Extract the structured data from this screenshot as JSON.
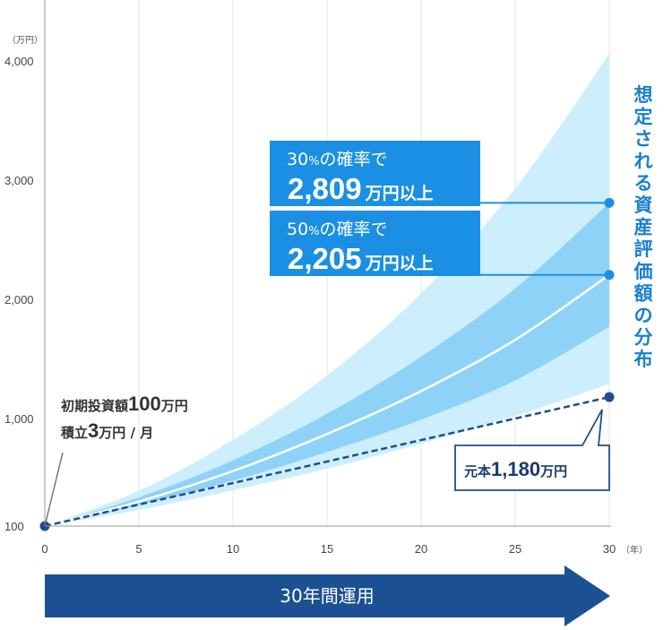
{
  "chart_data": {
    "type": "area",
    "title": "",
    "xlabel": "",
    "ylabel": "",
    "y_unit": "（万円）",
    "x_unit": "（年）",
    "x_ticks": [
      0,
      5,
      10,
      15,
      20,
      25,
      30
    ],
    "x_tick_labels": [
      "0",
      "5",
      "10",
      "15",
      "20",
      "25",
      "30"
    ],
    "y_ticks": [
      100,
      1000,
      2000,
      3000,
      4000
    ],
    "y_tick_labels": [
      "100",
      "1,000",
      "2,000",
      "3,000",
      "4,000"
    ],
    "xlim": [
      0,
      30
    ],
    "ylim": [
      0,
      4000
    ],
    "grid": true,
    "x": [
      0,
      5,
      10,
      15,
      20,
      25,
      30
    ],
    "series": [
      {
        "values": [
          100,
          395,
          820,
          1360,
          2050,
          2930,
          4060
        ]
      },
      {
        "values": [
          100,
          340,
          650,
          1040,
          1520,
          2090,
          2809
        ]
      },
      {
        "values": [
          100,
          305,
          560,
          870,
          1230,
          1660,
          2205
        ]
      },
      {
        "values": [
          100,
          275,
          480,
          720,
          990,
          1320,
          1770
        ]
      },
      {
        "values": [
          100,
          235,
          400,
          580,
          790,
          1020,
          1290
        ]
      },
      {
        "values": [
          100,
          280,
          460,
          640,
          820,
          1000,
          1180
        ]
      }
    ],
    "colors": {
      "outer_band": "#cdeefd",
      "inner_band": "#8ed3f7",
      "median": "#ffffff",
      "principal": "#1f4e8c",
      "callout": "#1a8fe3",
      "callout_line": "#1a8fe3",
      "arrow": "#1b5192",
      "side_text": "#1a7fcf"
    }
  },
  "callouts": [
    {
      "line1": "30",
      "line1_pct": "%",
      "line1_rest": "の確率で",
      "value": "2,809",
      "unit": "万円以上"
    },
    {
      "line1": "50",
      "line1_pct": "%",
      "line1_rest": "の確率で",
      "value": "2,205",
      "unit": "万円以上"
    }
  ],
  "initial_note": {
    "line1_pre": "初期投資額",
    "line1_num": "100",
    "line1_unit": "万円",
    "line2_pre": "積立",
    "line2_num": "3",
    "line2_unit": "万円 / 月"
  },
  "principal_note": {
    "pre": "元本",
    "num": "1,180",
    "unit": "万円"
  },
  "side_label": [
    "想",
    "定",
    "さ",
    "れ",
    "る",
    "資",
    "産",
    "評",
    "価",
    "額",
    "の",
    "分",
    "布"
  ],
  "arrow_label": "30年間運用"
}
